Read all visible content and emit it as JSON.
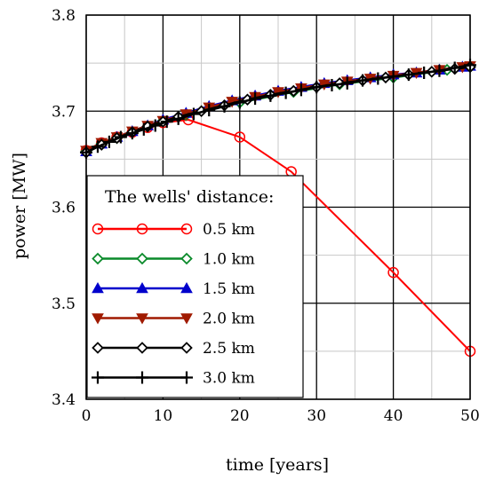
{
  "chart_data": {
    "type": "line",
    "title": "",
    "xlabel": "time [years]",
    "ylabel": "power [MW]",
    "xlim": [
      0,
      50
    ],
    "ylim": [
      3.4,
      3.8
    ],
    "xticks": [
      0,
      10,
      20,
      30,
      40,
      50
    ],
    "yticks": [
      3.4,
      3.5,
      3.6,
      3.7,
      3.8
    ],
    "xtick_labels": [
      "0",
      "10",
      "20",
      "30",
      "40",
      "50"
    ],
    "ytick_labels": [
      "3.4",
      "3.5",
      "3.6",
      "3.7",
      "3.8"
    ],
    "grid": true,
    "legend_title": "The wells' distance:",
    "legend_position": "lower-left",
    "series": [
      {
        "name": "0.5 km",
        "color": "#ff0000",
        "marker": "circle",
        "x": [
          0,
          2,
          4,
          6,
          8,
          10,
          13.3,
          20,
          26.7,
          40,
          50
        ],
        "y": [
          3.659,
          3.667,
          3.673,
          3.678,
          3.683,
          3.688,
          3.691,
          3.673,
          3.637,
          3.532,
          3.45
        ]
      },
      {
        "name": "1.0 km",
        "color": "#0a8a2a",
        "marker": "diamond",
        "x": [
          0,
          2,
          4,
          6,
          8,
          10,
          13,
          20,
          27,
          33,
          40,
          47,
          50
        ],
        "y": [
          3.658,
          3.666,
          3.672,
          3.678,
          3.684,
          3.69,
          3.696,
          3.709,
          3.72,
          3.728,
          3.735,
          3.743,
          3.746
        ]
      },
      {
        "name": "1.5 km",
        "color": "#0000cc",
        "marker": "triangle-up",
        "x": [
          0,
          2,
          4,
          6,
          8,
          10,
          13,
          16,
          19,
          22,
          25,
          28,
          31,
          34,
          37,
          40,
          43,
          46,
          49,
          50
        ],
        "y": [
          3.658,
          3.666,
          3.673,
          3.679,
          3.685,
          3.691,
          3.698,
          3.705,
          3.711,
          3.716,
          3.721,
          3.725,
          3.729,
          3.732,
          3.735,
          3.738,
          3.74,
          3.743,
          3.746,
          3.747
        ]
      },
      {
        "name": "2.0 km",
        "color": "#a01a00",
        "marker": "triangle-down",
        "x": [
          0,
          2,
          4,
          6,
          8,
          10,
          13,
          16,
          19,
          22,
          25,
          28,
          31,
          34,
          37,
          40,
          43,
          46,
          49,
          50
        ],
        "y": [
          3.659,
          3.667,
          3.673,
          3.679,
          3.685,
          3.69,
          3.697,
          3.704,
          3.71,
          3.715,
          3.72,
          3.724,
          3.728,
          3.731,
          3.734,
          3.737,
          3.74,
          3.743,
          3.746,
          3.747
        ]
      },
      {
        "name": "2.5 km",
        "color": "#000000",
        "marker": "diamond",
        "x": [
          0,
          2,
          4,
          6,
          8,
          10,
          12,
          15,
          18,
          21,
          24,
          27,
          30,
          33,
          36,
          39,
          42,
          45,
          48,
          50
        ],
        "y": [
          3.657,
          3.665,
          3.672,
          3.678,
          3.684,
          3.689,
          3.694,
          3.7,
          3.706,
          3.712,
          3.717,
          3.721,
          3.725,
          3.729,
          3.732,
          3.735,
          3.738,
          3.741,
          3.744,
          3.746
        ]
      },
      {
        "name": "3.0 km",
        "color": "#000000",
        "marker": "plus",
        "x": [
          0,
          1.5,
          3,
          4.5,
          6,
          7.5,
          9,
          10.5,
          12,
          14,
          16,
          18,
          20,
          22,
          24,
          26,
          28,
          30,
          32,
          34,
          36,
          38,
          40,
          42,
          44,
          46,
          48,
          50
        ],
        "y": [
          3.657,
          3.663,
          3.668,
          3.673,
          3.677,
          3.681,
          3.685,
          3.689,
          3.692,
          3.697,
          3.701,
          3.705,
          3.709,
          3.713,
          3.716,
          3.719,
          3.722,
          3.725,
          3.727,
          3.729,
          3.732,
          3.734,
          3.736,
          3.738,
          3.74,
          3.742,
          3.745,
          3.748
        ]
      }
    ]
  }
}
